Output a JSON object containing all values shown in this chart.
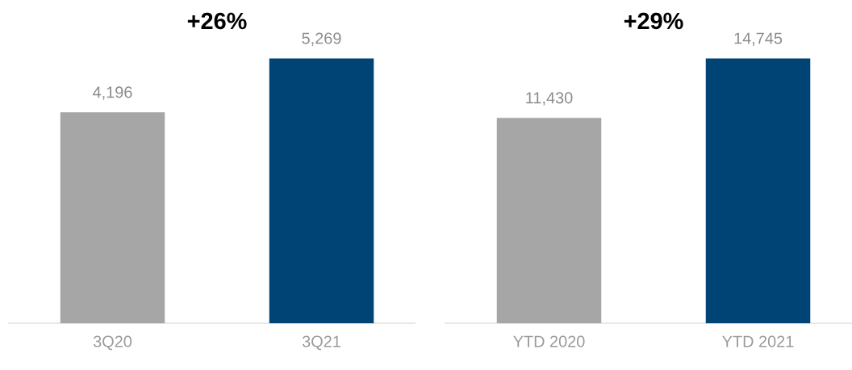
{
  "chart_data": [
    {
      "type": "bar",
      "categories": [
        "3Q20",
        "3Q21"
      ],
      "values": [
        4196,
        5269
      ],
      "colors": [
        "#a6a6a6",
        "#004475"
      ],
      "value_labels": [
        "4,196",
        "5,269"
      ],
      "annotations": [
        "+26%"
      ]
    },
    {
      "type": "bar",
      "categories": [
        "YTD 2020",
        "YTD 2021"
      ],
      "values": [
        11430,
        14745
      ],
      "colors": [
        "#a6a6a6",
        "#004475"
      ],
      "value_labels": [
        "11,430",
        "14,745"
      ],
      "annotations": [
        "+29%"
      ]
    }
  ]
}
